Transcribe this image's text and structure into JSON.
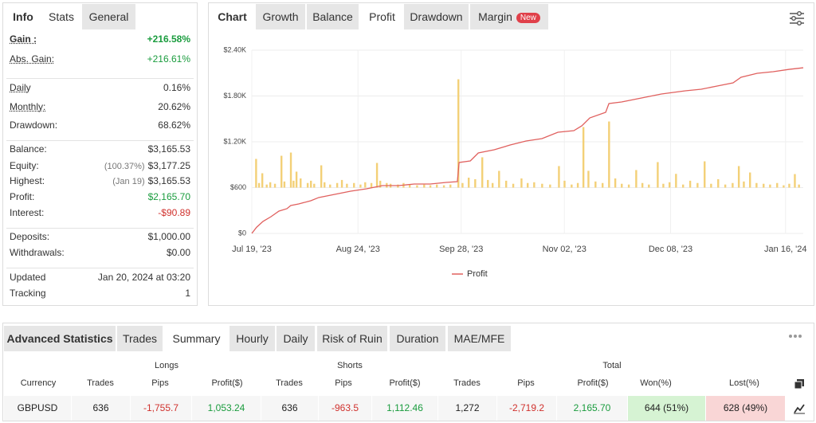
{
  "left_tabs": [
    "Info",
    "Stats",
    "General"
  ],
  "left_active": 1,
  "stats": {
    "groups": [
      [
        {
          "label": "Gain :",
          "value": "+216.58%",
          "color": "#1a9c3e",
          "bold": true,
          "underline": true
        },
        {
          "label": "Abs. Gain:",
          "value": "+216.61%",
          "color": "#1a9c3e",
          "underline": true
        }
      ],
      [
        {
          "label": "Daily",
          "value": "0.16%",
          "underline": true
        },
        {
          "label": "Monthly:",
          "value": "20.62%",
          "underline": true
        },
        {
          "label": "Drawdown:",
          "value": "68.62%"
        }
      ],
      [
        {
          "label": "Balance:",
          "value": "$3,165.53"
        },
        {
          "label": "Equity:",
          "note": "(100.37%)",
          "value": "$3,177.25"
        },
        {
          "label": "Highest:",
          "note": "(Jan 19)",
          "value": "$3,165.53"
        },
        {
          "label": "Profit:",
          "value": "$2,165.70",
          "color": "#1a9c3e"
        },
        {
          "label": "Interest:",
          "value": "-$90.89",
          "color": "#d0312d"
        }
      ],
      [
        {
          "label": "Deposits:",
          "value": "$1,000.00"
        },
        {
          "label": "Withdrawals:",
          "value": "$0.00"
        }
      ],
      [
        {
          "label": "Updated",
          "value": "Jan 20, 2024 at 03:20"
        },
        {
          "label": "Tracking",
          "value": "1"
        }
      ]
    ]
  },
  "chart_tabs": [
    "Chart",
    "Growth",
    "Balance",
    "Profit",
    "Drawdown",
    "Margin"
  ],
  "chart_active": 3,
  "new_badge": "New",
  "chart_data": {
    "type": "combo",
    "grid": true,
    "legend": "bottom",
    "ylim": [
      0,
      2400
    ],
    "yticks": [
      {
        "value": 0,
        "label": "$0"
      },
      {
        "value": 600,
        "label": "$600"
      },
      {
        "value": 1200,
        "label": "$1.20K"
      },
      {
        "value": 1800,
        "label": "$1.80K"
      },
      {
        "value": 2400,
        "label": "$2.40K"
      }
    ],
    "y2lim": [
      -600,
      1800
    ],
    "xlim": [
      0,
      187
    ],
    "xticks": [
      {
        "value": 0,
        "label": "Jul 19, '23"
      },
      {
        "value": 36,
        "label": "Aug 24, '23"
      },
      {
        "value": 71,
        "label": "Sep 28, '23"
      },
      {
        "value": 106,
        "label": "Nov 02, '23"
      },
      {
        "value": 142,
        "label": "Dec 08, '23"
      },
      {
        "value": 181,
        "label": "Jan 16, '24"
      }
    ],
    "series": [
      {
        "type": "bar",
        "axis": "y2",
        "color": "#f3d077",
        "x": [
          1.4,
          2.4,
          3.5,
          5,
          6.2,
          7.8,
          10,
          11,
          13.2,
          14.1,
          15.1,
          16.5,
          18.9,
          20,
          21.1,
          23.5,
          24.6,
          26.5,
          28.9,
          30.5,
          32.2,
          34.6,
          36.8,
          38.4,
          40.5,
          42.4,
          43.5,
          45.7,
          47,
          49.5,
          51.4,
          53.5,
          56,
          58.4,
          60.5,
          62.7,
          65.1,
          67.3,
          70,
          71.4,
          73.5,
          75.7,
          78.1,
          80,
          81.6,
          83.8,
          86.2,
          88.6,
          91.4,
          93.5,
          95.7,
          98.4,
          101.1,
          104.1,
          106,
          108.4,
          110.5,
          112.4,
          114.1,
          116.5,
          118.9,
          121.1,
          123.2,
          125.4,
          127.8,
          130.3,
          132.4,
          134.6,
          137.6,
          139.5,
          141.6,
          143.8,
          146.2,
          148.6,
          151.1,
          153.5,
          155.7,
          158.1,
          160.5,
          163,
          165.1,
          166.8,
          168.9,
          171.1,
          173.5,
          175.7,
          178.1,
          180.3,
          182.2,
          184.1,
          185.5
        ],
        "values": [
          376,
          60,
          188,
          40,
          70,
          50,
          417,
          80,
          459,
          90,
          209,
          120,
          60,
          90,
          50,
          292,
          70,
          40,
          60,
          100,
          50,
          60,
          40,
          70,
          60,
          323,
          90,
          60,
          50,
          40,
          60,
          40,
          30,
          40,
          30,
          40,
          30,
          40,
          1419,
          60,
          130,
          110,
          397,
          100,
          60,
          219,
          90,
          50,
          120,
          60,
          70,
          50,
          40,
          282,
          90,
          40,
          60,
          793,
          220,
          80,
          60,
          866,
          120,
          50,
          40,
          230,
          60,
          40,
          334,
          50,
          70,
          180,
          40,
          90,
          60,
          344,
          50,
          110,
          40,
          60,
          282,
          80,
          198,
          60,
          50,
          40,
          60,
          30,
          50,
          177,
          40
        ]
      },
      {
        "type": "line",
        "name": "Profit",
        "color": "#e0605e",
        "x": [
          0,
          1.6,
          3.8,
          6.5,
          9.2,
          11.9,
          13.2,
          15.9,
          20,
          22.7,
          28.1,
          33.5,
          38.9,
          44.3,
          49.7,
          55.1,
          60.5,
          65.9,
          69.7,
          70.3,
          74.1,
          76.8,
          82.2,
          87.6,
          93,
          98.4,
          103.8,
          109.2,
          111.9,
          114.6,
          120,
          121.1,
          125.4,
          130.8,
          138.9,
          147,
          152.4,
          157.8,
          163.2,
          165.9,
          171.4,
          176.8,
          182.2,
          187
        ],
        "values": [
          0,
          80,
          157,
          219,
          292,
          324,
          365,
          386,
          428,
          470,
          511,
          553,
          584,
          626,
          626,
          647,
          647,
          668,
          678,
          929,
          950,
          1054,
          1096,
          1158,
          1210,
          1242,
          1325,
          1346,
          1409,
          1513,
          1586,
          1701,
          1722,
          1763,
          1826,
          1868,
          1889,
          1930,
          1972,
          2045,
          2097,
          2118,
          2149,
          2170
        ]
      }
    ]
  },
  "advanced": {
    "title": "Advanced Statistics",
    "tabs": [
      "Trades",
      "Summary",
      "Hourly",
      "Daily",
      "Risk of Ruin",
      "Duration",
      "MAE/MFE"
    ],
    "active": 1,
    "groups": [
      "Longs",
      "Shorts",
      "Total"
    ],
    "columns": [
      "Currency",
      "Trades",
      "Pips",
      "Profit($)",
      "Trades",
      "Pips",
      "Profit($)",
      "Trades",
      "Pips",
      "Profit($)",
      "Won(%)",
      "Lost(%)"
    ],
    "rows": [
      [
        "GBPUSD",
        "636",
        "-1,755.7",
        "1,053.24",
        "636",
        "-963.5",
        "1,112.46",
        "1,272",
        "-2,719.2",
        "2,165.70",
        "644 (51%)",
        "628 (49%)"
      ]
    ]
  }
}
